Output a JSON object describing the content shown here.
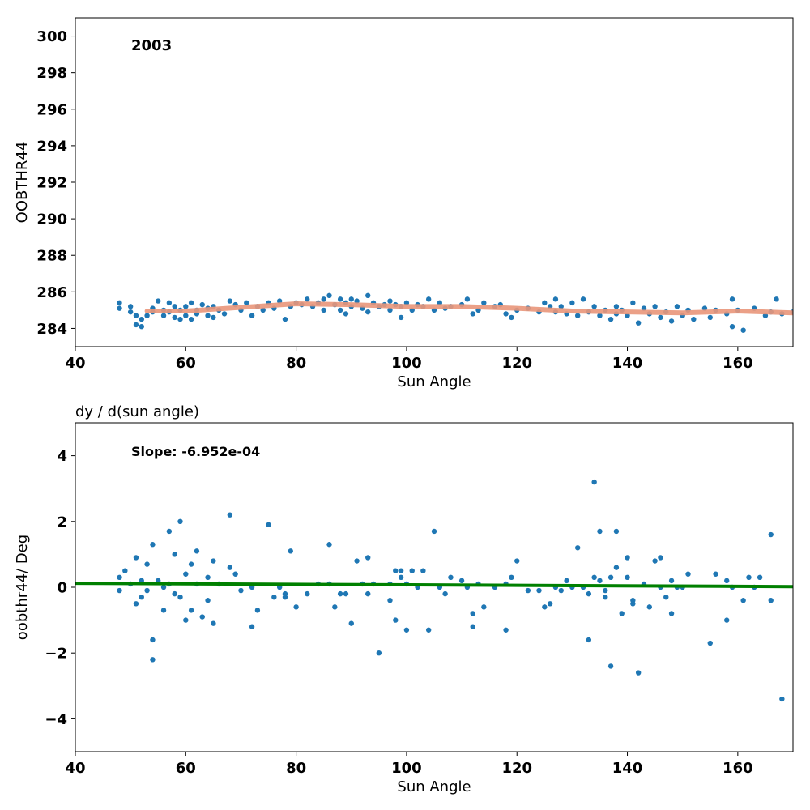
{
  "chart_data": [
    {
      "type": "scatter",
      "title": "",
      "annotation": "2003",
      "xlabel": "Sun Angle",
      "ylabel": "OOBTHR44",
      "xlim": [
        40,
        170
      ],
      "ylim": [
        283,
        301
      ],
      "xticks": [
        40,
        60,
        80,
        100,
        120,
        140,
        160
      ],
      "yticks": [
        284,
        286,
        288,
        290,
        292,
        294,
        296,
        298,
        300
      ],
      "grid": false,
      "colors": {
        "points": "#1f77b4",
        "fit": "#e9967a"
      },
      "series": [
        {
          "kind": "points",
          "x": [
            48,
            48,
            50,
            50,
            51,
            51,
            52,
            52,
            53,
            54,
            54,
            55,
            56,
            56,
            57,
            57,
            58,
            58,
            59,
            59,
            60,
            60,
            61,
            61,
            62,
            62,
            63,
            64,
            64,
            65,
            65,
            66,
            67,
            68,
            69,
            70,
            71,
            72,
            73,
            74,
            75,
            76,
            77,
            78,
            79,
            80,
            81,
            82,
            83,
            84,
            85,
            85,
            86,
            87,
            88,
            88,
            89,
            89,
            90,
            90,
            91,
            92,
            93,
            93,
            94,
            95,
            96,
            97,
            97,
            98,
            99,
            99,
            100,
            101,
            102,
            103,
            104,
            105,
            106,
            107,
            108,
            110,
            111,
            112,
            113,
            114,
            116,
            117,
            118,
            119,
            120,
            122,
            124,
            125,
            126,
            127,
            127,
            128,
            129,
            130,
            131,
            132,
            133,
            134,
            135,
            136,
            137,
            138,
            138,
            139,
            140,
            141,
            142,
            143,
            144,
            145,
            146,
            147,
            148,
            149,
            150,
            151,
            152,
            154,
            155,
            156,
            158,
            159,
            159,
            160,
            161,
            163,
            165,
            166,
            167,
            168,
            170
          ],
          "y": [
            285.4,
            285.1,
            284.9,
            285.2,
            284.7,
            284.2,
            284.5,
            284.1,
            284.7,
            284.9,
            285.1,
            285.5,
            285.0,
            284.7,
            285.4,
            284.9,
            285.2,
            284.6,
            285.0,
            284.5,
            285.2,
            284.7,
            285.4,
            284.5,
            285.0,
            284.8,
            285.3,
            284.7,
            285.1,
            284.6,
            285.2,
            285.0,
            284.8,
            285.5,
            285.3,
            285.0,
            285.4,
            284.7,
            285.2,
            285.0,
            285.4,
            285.1,
            285.5,
            284.5,
            285.2,
            285.4,
            285.3,
            285.6,
            285.2,
            285.4,
            285.6,
            285.0,
            285.8,
            285.3,
            285.6,
            285.0,
            285.4,
            284.8,
            285.6,
            285.2,
            285.5,
            285.1,
            285.8,
            284.9,
            285.4,
            285.2,
            285.3,
            285.5,
            285.0,
            285.3,
            284.6,
            285.2,
            285.4,
            285.0,
            285.3,
            285.2,
            285.6,
            285.0,
            285.4,
            285.1,
            285.2,
            285.3,
            285.6,
            284.8,
            285.0,
            285.4,
            285.2,
            285.3,
            284.8,
            284.6,
            285.0,
            285.1,
            284.9,
            285.4,
            285.2,
            285.6,
            284.9,
            285.2,
            284.8,
            285.4,
            284.7,
            285.6,
            284.9,
            285.2,
            284.7,
            285.0,
            284.5,
            285.2,
            284.8,
            285.0,
            284.7,
            285.4,
            284.3,
            285.1,
            284.8,
            285.2,
            284.6,
            284.9,
            284.4,
            285.2,
            284.7,
            285.0,
            284.5,
            285.1,
            284.6,
            285.0,
            284.8,
            285.6,
            284.1,
            285.0,
            283.9,
            285.1,
            284.7,
            284.9,
            285.6,
            284.8,
            284.9
          ]
        },
        {
          "kind": "fit",
          "x": [
            53,
            60,
            70,
            80,
            90,
            100,
            110,
            120,
            130,
            140,
            150,
            160,
            170
          ],
          "y": [
            284.95,
            284.95,
            285.15,
            285.35,
            285.3,
            285.2,
            285.2,
            285.1,
            284.95,
            284.9,
            284.85,
            284.95,
            284.85
          ]
        }
      ]
    },
    {
      "type": "scatter",
      "title": "dy / d(sun angle)",
      "annotation": "Slope: -6.952e-04",
      "xlabel": "Sun Angle",
      "ylabel": "oobthr44/ Deg",
      "xlim": [
        40,
        170
      ],
      "ylim": [
        -5,
        5
      ],
      "xticks": [
        40,
        60,
        80,
        100,
        120,
        140,
        160
      ],
      "yticks": [
        -4,
        -2,
        0,
        2,
        4
      ],
      "grid": false,
      "colors": {
        "points": "#1f77b4",
        "fit": "#008000"
      },
      "series": [
        {
          "kind": "points",
          "x": [
            48,
            48,
            49,
            50,
            51,
            51,
            52,
            52,
            53,
            53,
            54,
            54,
            54,
            55,
            56,
            56,
            57,
            57,
            58,
            58,
            59,
            59,
            60,
            60,
            61,
            61,
            62,
            62,
            63,
            64,
            64,
            65,
            65,
            66,
            68,
            68,
            69,
            70,
            72,
            72,
            73,
            75,
            76,
            77,
            78,
            78,
            79,
            80,
            82,
            84,
            86,
            86,
            87,
            88,
            89,
            90,
            91,
            92,
            93,
            93,
            94,
            95,
            97,
            97,
            98,
            98,
            99,
            99,
            100,
            100,
            101,
            102,
            103,
            104,
            105,
            106,
            107,
            108,
            110,
            111,
            112,
            112,
            113,
            114,
            116,
            118,
            118,
            119,
            120,
            122,
            124,
            125,
            126,
            127,
            128,
            129,
            130,
            131,
            132,
            133,
            133,
            134,
            134,
            135,
            135,
            136,
            136,
            137,
            137,
            138,
            138,
            139,
            140,
            140,
            141,
            141,
            142,
            143,
            144,
            145,
            146,
            146,
            147,
            148,
            148,
            149,
            150,
            151,
            155,
            156,
            158,
            158,
            159,
            161,
            162,
            163,
            164,
            166,
            166,
            168
          ],
          "y": [
            0.3,
            -0.1,
            0.5,
            0.1,
            0.9,
            -0.5,
            0.2,
            -0.3,
            0.7,
            -0.1,
            1.3,
            -1.6,
            -2.2,
            0.2,
            0.0,
            -0.7,
            1.7,
            0.1,
            1.0,
            -0.2,
            2.0,
            -0.3,
            0.4,
            -1.0,
            0.7,
            -0.7,
            1.1,
            0.1,
            -0.9,
            0.3,
            -0.4,
            0.8,
            -1.1,
            0.1,
            2.2,
            0.6,
            0.4,
            -0.1,
            0.0,
            -1.2,
            -0.7,
            1.9,
            -0.3,
            0.0,
            -0.3,
            -0.2,
            1.1,
            -0.6,
            -0.2,
            0.1,
            1.3,
            0.1,
            -0.6,
            -0.2,
            -0.2,
            -1.1,
            0.8,
            0.1,
            0.9,
            -0.2,
            0.1,
            -2.0,
            -0.4,
            0.1,
            0.5,
            -1.0,
            0.3,
            0.5,
            -1.3,
            0.1,
            0.5,
            0.0,
            0.5,
            -1.3,
            1.7,
            0.0,
            -0.2,
            0.3,
            0.2,
            0.0,
            -0.8,
            -1.2,
            0.1,
            -0.6,
            0.0,
            0.1,
            -1.3,
            0.3,
            0.8,
            -0.1,
            -0.1,
            -0.6,
            -0.5,
            0.0,
            -0.1,
            0.2,
            0.0,
            1.2,
            0.0,
            -1.6,
            -0.2,
            3.2,
            0.3,
            1.7,
            0.2,
            -0.3,
            -0.1,
            -2.4,
            0.3,
            1.7,
            0.6,
            -0.8,
            0.9,
            0.3,
            -0.4,
            -0.5,
            -2.6,
            0.1,
            -0.6,
            0.8,
            0.9,
            0.0,
            -0.3,
            0.2,
            -0.8,
            0.0,
            0.0,
            0.4,
            -1.7,
            0.4,
            0.2,
            -1.0,
            0.0,
            -0.4,
            0.3,
            0.0,
            0.3,
            -0.4,
            1.6,
            -3.4
          ]
        },
        {
          "kind": "fit",
          "x": [
            40,
            170
          ],
          "y": [
            0.12,
            0.02
          ]
        }
      ]
    }
  ]
}
